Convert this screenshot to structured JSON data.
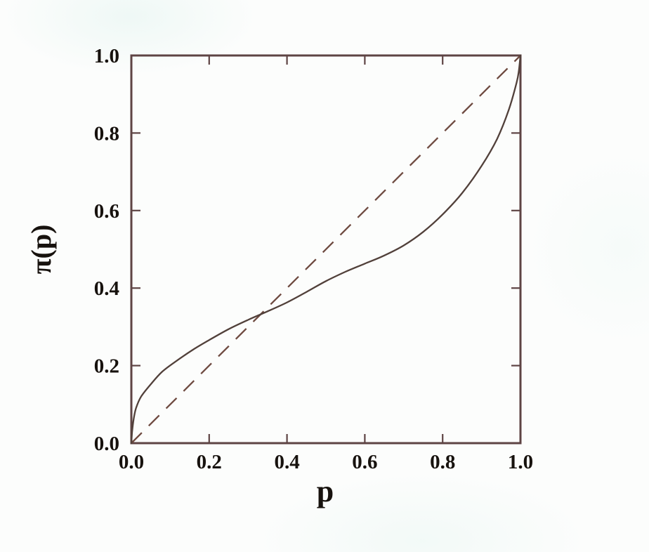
{
  "style": {
    "background": "#fcfdfc",
    "axis_color": "#5e4444",
    "tick_color": "#5e4444",
    "text_color": "#17120e"
  },
  "chart_data": {
    "type": "line",
    "title": "",
    "xlabel": "p",
    "ylabel": "π(p)",
    "xlim": [
      0,
      1
    ],
    "ylim": [
      0,
      1
    ],
    "grid": false,
    "legend": "none",
    "tick_style": "inward ticks mirrored on all four sides",
    "x_tick_labels": [
      "0.0",
      "0.2",
      "0.4",
      "0.6",
      "0.8",
      "1.0"
    ],
    "y_tick_labels": [
      "0.0",
      "0.2",
      "0.4",
      "0.6",
      "0.8",
      "1.0"
    ],
    "series": [
      {
        "name": "probability-weighting-function",
        "description": "solid inverse-S curve: overweights small probabilities, underweights large ones, crosses diagonal near p=0.34",
        "line_style": "solid",
        "color": "#51403a",
        "x": [
          0,
          0.002,
          0.006,
          0.012,
          0.025,
          0.05,
          0.08,
          0.12,
          0.16,
          0.2,
          0.25,
          0.3,
          0.35,
          0.4,
          0.45,
          0.5,
          0.55,
          0.6,
          0.65,
          0.7,
          0.75,
          0.8,
          0.85,
          0.9,
          0.94,
          0.97,
          0.99,
          0.996,
          1
        ],
        "y": [
          0,
          0.03,
          0.062,
          0.09,
          0.12,
          0.152,
          0.185,
          0.215,
          0.242,
          0.266,
          0.294,
          0.318,
          0.34,
          0.363,
          0.39,
          0.418,
          0.442,
          0.463,
          0.484,
          0.51,
          0.545,
          0.59,
          0.645,
          0.715,
          0.785,
          0.86,
          0.93,
          0.962,
          1
        ],
        "crosses_identity_at": [
          0.34,
          0.33
        ]
      },
      {
        "name": "identity-line",
        "description": "dashed 45-degree reference line π(p)=p",
        "line_style": "dashed",
        "color": "#6e4a40",
        "x": [
          0,
          1
        ],
        "y": [
          0,
          1
        ]
      }
    ]
  }
}
